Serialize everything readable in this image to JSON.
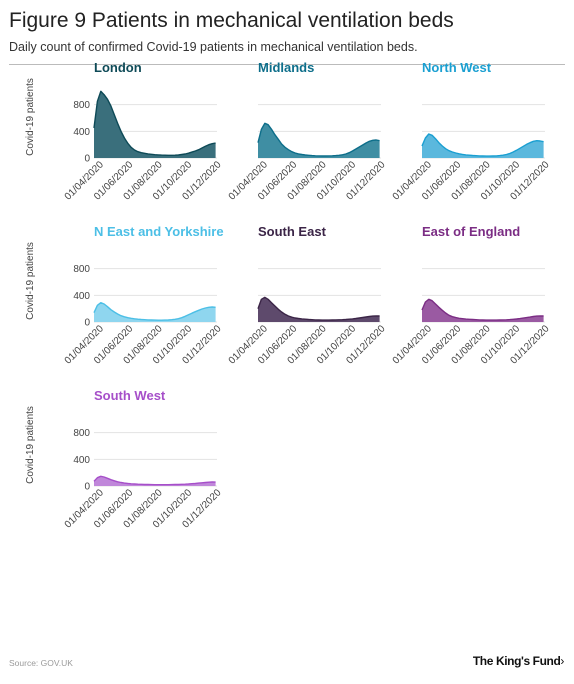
{
  "header": {
    "title": "Figure 9 Patients in mechanical ventilation beds",
    "subtitle": "Daily count of confirmed Covid-19 patients in mechanical ventilation beds."
  },
  "footer": {
    "source": "Source: GOV.UK",
    "logo": "The King's Fund",
    "logo_chevron": "›"
  },
  "chart_data": {
    "type": "area",
    "ylabel": "Covid-19 patients",
    "yticks": [
      0,
      400,
      800
    ],
    "ylim": [
      0,
      1050
    ],
    "xlim": [
      "2020-03-20",
      "2020-11-30"
    ],
    "xticks": [
      "01/04/2020",
      "01/06/2020",
      "01/08/2020",
      "01/10/2020",
      "01/12/2020"
    ],
    "x": [
      "2020-03-20",
      "2020-03-27",
      "2020-04-03",
      "2020-04-10",
      "2020-04-17",
      "2020-04-24",
      "2020-05-01",
      "2020-05-08",
      "2020-05-15",
      "2020-05-22",
      "2020-05-29",
      "2020-06-05",
      "2020-06-12",
      "2020-06-19",
      "2020-06-26",
      "2020-07-03",
      "2020-07-10",
      "2020-07-17",
      "2020-07-24",
      "2020-07-31",
      "2020-08-07",
      "2020-08-14",
      "2020-08-21",
      "2020-08-28",
      "2020-09-04",
      "2020-09-11",
      "2020-09-18",
      "2020-09-25",
      "2020-10-02",
      "2020-10-09",
      "2020-10-16",
      "2020-10-23",
      "2020-10-30",
      "2020-11-06",
      "2020-11-13",
      "2020-11-20",
      "2020-11-27"
    ],
    "series": [
      {
        "name": "London",
        "color": "#0e4a57",
        "fill": "#3a6f7c",
        "values": [
          450,
          850,
          1000,
          950,
          880,
          780,
          650,
          520,
          400,
          300,
          220,
          160,
          120,
          95,
          80,
          70,
          62,
          56,
          50,
          46,
          44,
          42,
          40,
          40,
          42,
          45,
          52,
          60,
          72,
          88,
          105,
          125,
          150,
          175,
          200,
          215,
          225
        ]
      },
      {
        "name": "Midlands",
        "color": "#0d6e8a",
        "fill": "#3f8ea3",
        "values": [
          230,
          430,
          520,
          500,
          430,
          350,
          280,
          210,
          160,
          125,
          95,
          75,
          62,
          52,
          45,
          40,
          36,
          33,
          31,
          30,
          30,
          31,
          33,
          36,
          40,
          48,
          60,
          80,
          105,
          135,
          165,
          195,
          225,
          250,
          265,
          270,
          260
        ]
      },
      {
        "name": "North West",
        "color": "#1a9fd1",
        "fill": "#5bb8dd",
        "values": [
          180,
          300,
          360,
          340,
          290,
          230,
          180,
          140,
          110,
          90,
          75,
          63,
          54,
          47,
          42,
          38,
          35,
          32,
          30,
          29,
          29,
          30,
          32,
          36,
          42,
          52,
          68,
          90,
          115,
          145,
          175,
          205,
          230,
          250,
          260,
          255,
          245
        ]
      },
      {
        "name": "N East and Yorkshire",
        "color": "#4cbfe6",
        "fill": "#8fd6ef",
        "values": [
          140,
          250,
          290,
          270,
          230,
          185,
          150,
          120,
          95,
          78,
          65,
          55,
          48,
          42,
          38,
          35,
          32,
          30,
          28,
          27,
          27,
          28,
          30,
          34,
          40,
          50,
          65,
          85,
          108,
          132,
          155,
          175,
          195,
          210,
          220,
          225,
          220
        ]
      },
      {
        "name": "South East",
        "color": "#3b2547",
        "fill": "#5e4a6c",
        "values": [
          200,
          340,
          370,
          340,
          290,
          240,
          190,
          150,
          115,
          90,
          72,
          60,
          52,
          46,
          42,
          38,
          35,
          32,
          30,
          29,
          29,
          29,
          30,
          31,
          33,
          35,
          38,
          42,
          47,
          53,
          60,
          67,
          75,
          82,
          88,
          92,
          90
        ]
      },
      {
        "name": "East of England",
        "color": "#7b2d84",
        "fill": "#9a5aa2",
        "values": [
          180,
          300,
          340,
          320,
          270,
          220,
          175,
          135,
          100,
          80,
          66,
          56,
          49,
          44,
          40,
          37,
          34,
          32,
          30,
          29,
          28,
          28,
          29,
          30,
          31,
          33,
          36,
          40,
          45,
          51,
          58,
          66,
          74,
          82,
          88,
          92,
          90
        ]
      },
      {
        "name": "South West",
        "color": "#a64fc9",
        "fill": "#c087da",
        "values": [
          70,
          125,
          145,
          135,
          115,
          95,
          78,
          63,
          52,
          44,
          38,
          33,
          30,
          27,
          25,
          23,
          22,
          21,
          20,
          20,
          20,
          20,
          20,
          21,
          22,
          23,
          25,
          27,
          30,
          34,
          38,
          43,
          48,
          53,
          57,
          60,
          58
        ]
      }
    ]
  }
}
